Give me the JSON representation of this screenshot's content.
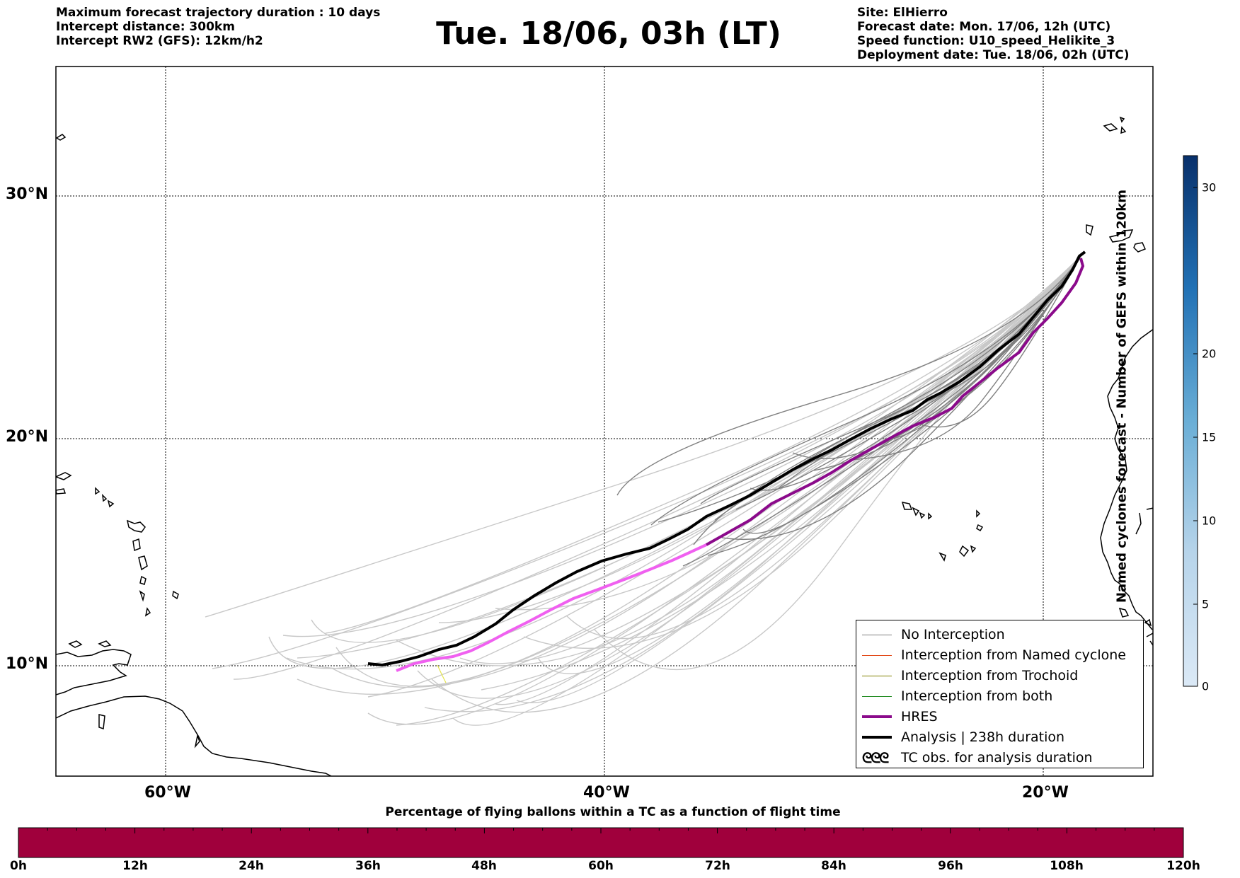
{
  "header": {
    "left_lines": [
      "Maximum forecast trajectory duration : 10 days",
      "Intercept distance: 300km",
      "Intercept RW2 (GFS):  12km/h2"
    ],
    "title": "Tue. 18/06, 03h (LT)",
    "right_lines": [
      "Site: ElHierro",
      "Forecast date: Mon. 17/06, 12h (UTC)",
      "Speed function: U10_speed_Helikite_3",
      "Deployment date: Tue. 18/06, 02h (UTC)"
    ]
  },
  "map": {
    "lon_range": [
      -65,
      15
    ],
    "lat_range": [
      5,
      35
    ],
    "lat_labels": [
      "30°N",
      "20°N",
      "10°N"
    ],
    "lon_labels": [
      "60°W",
      "40°W",
      "20°W"
    ],
    "colors": {
      "no_interception": "#808080",
      "no_interception_light": "#c8c8c8",
      "named_cyclone": "#e34a1a",
      "trochoid": "#808000",
      "both": "#1f8a1f",
      "hres": "#8b0a8b",
      "hres_early": "#f060f0",
      "analysis": "#000000",
      "coast": "#000000"
    }
  },
  "legend": {
    "items": [
      {
        "label": "No Interception",
        "icon": "line-gray"
      },
      {
        "label": "Interception from Named cyclone",
        "icon": "line-orange"
      },
      {
        "label": "Interception from Trochoid",
        "icon": "line-olive"
      },
      {
        "label": "Interception from both",
        "icon": "line-green"
      },
      {
        "label": "HRES",
        "icon": "line-purple-thick"
      },
      {
        "label": "Analysis | 238h duration",
        "icon": "line-black-thick"
      },
      {
        "label": "TC obs. for analysis duration",
        "icon": "cyclone-symbols"
      }
    ],
    "tc_glyph": "ᘓᘓᘓ"
  },
  "colorbar": {
    "label": "Named cyclones forecast - Number of GEFS within 120km",
    "ticks": [
      "0",
      "5",
      "10",
      "15",
      "20",
      "30"
    ],
    "tick_values": [
      0,
      5,
      10,
      15,
      20,
      30
    ],
    "range": [
      0,
      33
    ],
    "color_low": "#dbe9f6",
    "color_high": "#08306b"
  },
  "flight_bar": {
    "title": "Percentage of flying ballons within a TC as a function of flight time",
    "ticks": [
      "0h",
      "12h",
      "24h",
      "36h",
      "48h",
      "60h",
      "72h",
      "84h",
      "96h",
      "108h",
      "120h"
    ],
    "fill_color": "#a0003c",
    "percentages": "all 0%"
  }
}
